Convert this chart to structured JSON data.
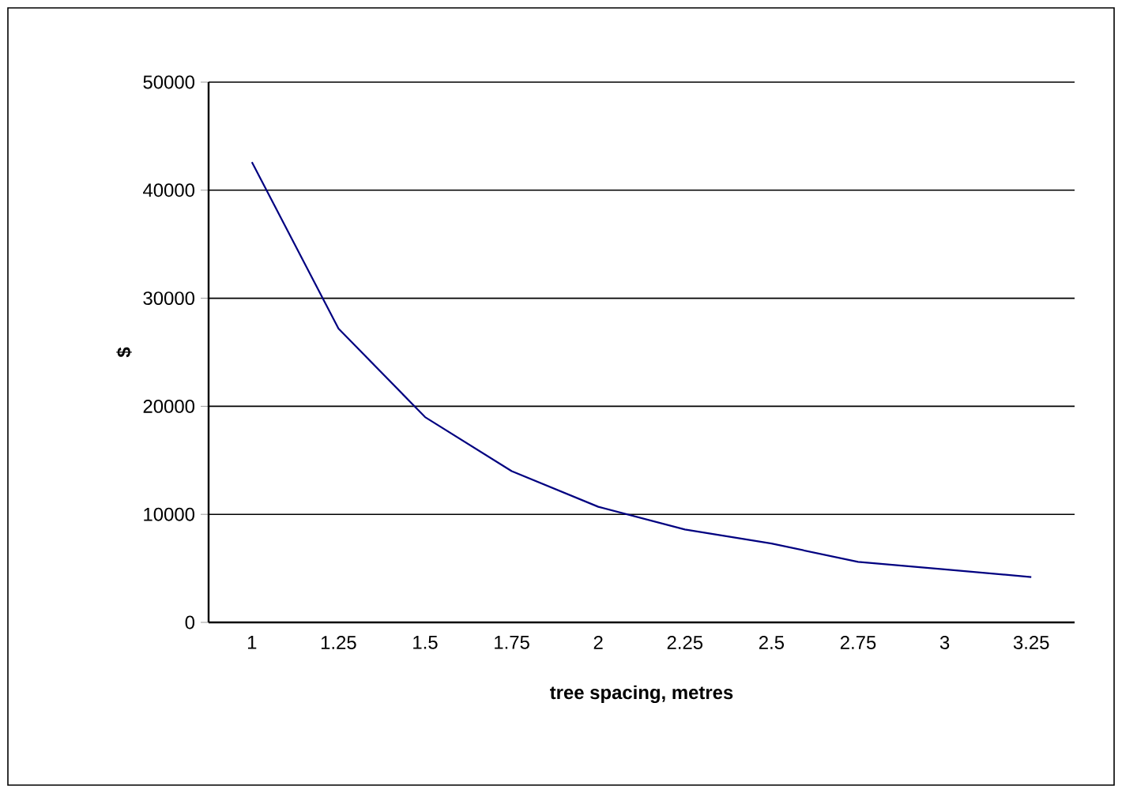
{
  "chart_data": {
    "type": "line",
    "xlabel": "tree spacing, metres",
    "ylabel": "$",
    "categories": [
      "1",
      "1.25",
      "1.5",
      "1.75",
      "2",
      "2.25",
      "2.5",
      "2.75",
      "3",
      "3.25"
    ],
    "series": [
      {
        "color": "#000080",
        "values": [
          42600,
          27200,
          19000,
          14000,
          10700,
          8600,
          7300,
          5600,
          4900,
          4200
        ]
      }
    ],
    "ylim": [
      0,
      50000
    ],
    "yticks": [
      0,
      10000,
      20000,
      30000,
      40000,
      50000
    ],
    "grid": "y"
  }
}
